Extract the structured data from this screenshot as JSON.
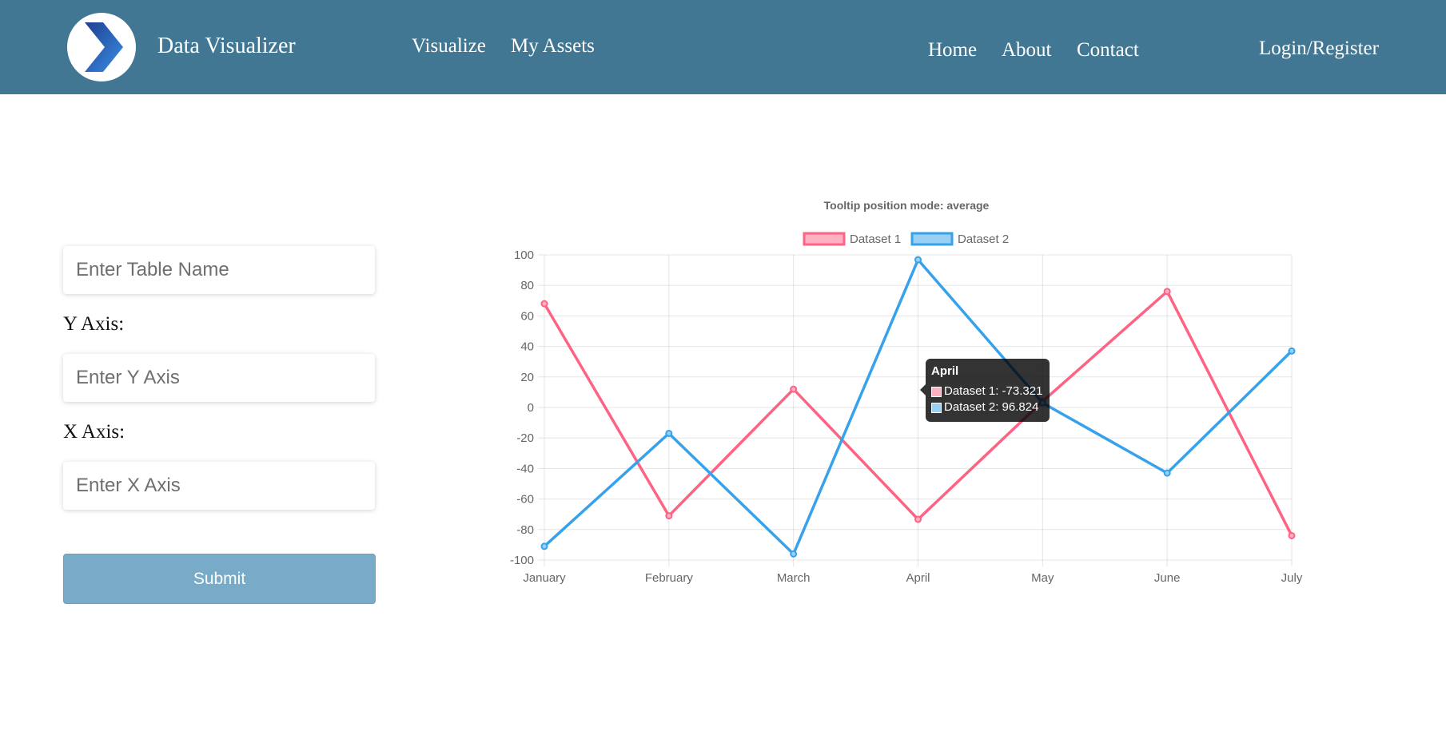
{
  "header": {
    "brand": "Data Visualizer",
    "logo_icon": "chevron-right-icon",
    "nav_left": [
      "Visualize",
      "My Assets"
    ],
    "nav_right": [
      "Home",
      "About",
      "Contact"
    ],
    "login": "Login/Register"
  },
  "form": {
    "table_name_placeholder": "Enter Table Name",
    "y_axis_label": "Y Axis:",
    "y_axis_placeholder": "Enter Y Axis",
    "x_axis_label": "X Axis:",
    "x_axis_placeholder": "Enter X Axis",
    "submit_label": "Submit"
  },
  "chart_data": {
    "type": "line",
    "title": "Tooltip position mode: average",
    "categories": [
      "January",
      "February",
      "March",
      "April",
      "May",
      "June",
      "July"
    ],
    "series": [
      {
        "name": "Dataset 1",
        "color": "#ff6384",
        "fill": "#ffb1c1",
        "values": [
          68,
          -71,
          12,
          -73.321,
          4,
          76,
          -84
        ]
      },
      {
        "name": "Dataset 2",
        "color": "#36a2eb",
        "fill": "#9ad0f5",
        "values": [
          -91,
          -17,
          -96,
          96.824,
          3,
          -43,
          37
        ]
      }
    ],
    "ylim": [
      -100,
      100
    ],
    "yticks": [
      100,
      80,
      60,
      40,
      20,
      0,
      -20,
      -40,
      -60,
      -80,
      -100
    ],
    "grid": true,
    "legend": "top",
    "tooltip": {
      "title": "April",
      "items": [
        "Dataset 1: -73.321",
        "Dataset 2: 96.824"
      ]
    }
  }
}
